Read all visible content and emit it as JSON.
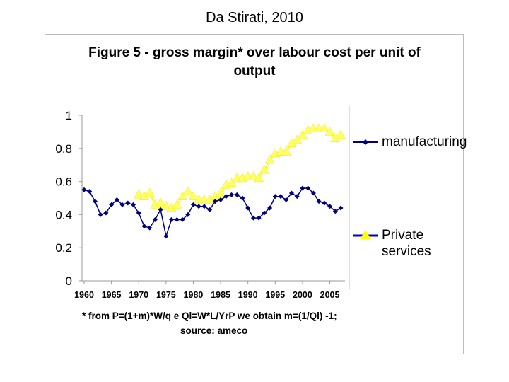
{
  "slide": {
    "title": "Da Stirati, 2010"
  },
  "chart_data": {
    "type": "line",
    "title": "Figure 5 - gross margin* over labour cost per unit of output",
    "xlabel": "",
    "ylabel": "",
    "ylim": [
      0,
      1
    ],
    "xlim": [
      1960,
      2007
    ],
    "y_ticks": [
      "0",
      "0.2",
      "0.4",
      "0.6",
      "0.8",
      "1"
    ],
    "x_ticks": [
      "1960",
      "1965",
      "1970",
      "1975",
      "1980",
      "1985",
      "1990",
      "1995",
      "2000",
      "2005"
    ],
    "legend_position": "right",
    "series": [
      {
        "name": "manufacturing",
        "color": "#000080",
        "marker": "diamond",
        "x": [
          1960,
          1961,
          1962,
          1963,
          1964,
          1965,
          1966,
          1967,
          1968,
          1969,
          1970,
          1971,
          1972,
          1973,
          1974,
          1975,
          1976,
          1977,
          1978,
          1979,
          1980,
          1981,
          1982,
          1983,
          1984,
          1985,
          1986,
          1987,
          1988,
          1989,
          1990,
          1991,
          1992,
          1993,
          1994,
          1995,
          1996,
          1997,
          1998,
          1999,
          2000,
          2001,
          2002,
          2003,
          2004,
          2005,
          2006,
          2007
        ],
        "values": [
          0.55,
          0.54,
          0.48,
          0.4,
          0.41,
          0.46,
          0.49,
          0.46,
          0.47,
          0.46,
          0.41,
          0.33,
          0.32,
          0.37,
          0.43,
          0.27,
          0.37,
          0.37,
          0.37,
          0.4,
          0.46,
          0.45,
          0.45,
          0.43,
          0.48,
          0.49,
          0.51,
          0.52,
          0.52,
          0.5,
          0.44,
          0.38,
          0.38,
          0.41,
          0.44,
          0.51,
          0.51,
          0.49,
          0.53,
          0.51,
          0.56,
          0.56,
          0.53,
          0.48,
          0.47,
          0.45,
          0.42,
          0.44
        ]
      },
      {
        "name": "Private services",
        "color": "#ffff66",
        "line_color": "#ffff00",
        "marker": "triangle",
        "x": [
          1970,
          1971,
          1972,
          1973,
          1974,
          1975,
          1976,
          1977,
          1978,
          1979,
          1980,
          1981,
          1982,
          1983,
          1984,
          1985,
          1986,
          1987,
          1988,
          1989,
          1990,
          1991,
          1992,
          1993,
          1994,
          1995,
          1996,
          1997,
          1998,
          1999,
          2000,
          2001,
          2002,
          2003,
          2004,
          2005,
          2006,
          2007
        ],
        "values": [
          0.52,
          0.51,
          0.53,
          0.46,
          0.47,
          0.45,
          0.44,
          0.46,
          0.51,
          0.54,
          0.51,
          0.49,
          0.49,
          0.49,
          0.51,
          0.53,
          0.58,
          0.59,
          0.62,
          0.62,
          0.63,
          0.63,
          0.62,
          0.67,
          0.73,
          0.77,
          0.78,
          0.78,
          0.83,
          0.85,
          0.88,
          0.91,
          0.92,
          0.92,
          0.92,
          0.9,
          0.86,
          0.88
        ]
      }
    ],
    "footnote": "* from P=(1+m)*W/q e Ql=W*L/YrP we obtain m=(1/Ql) -1;",
    "source": "source: ameco"
  },
  "legend": {
    "manufacturing": "manufacturing",
    "private_line1": "Private",
    "private_line2": "services"
  }
}
